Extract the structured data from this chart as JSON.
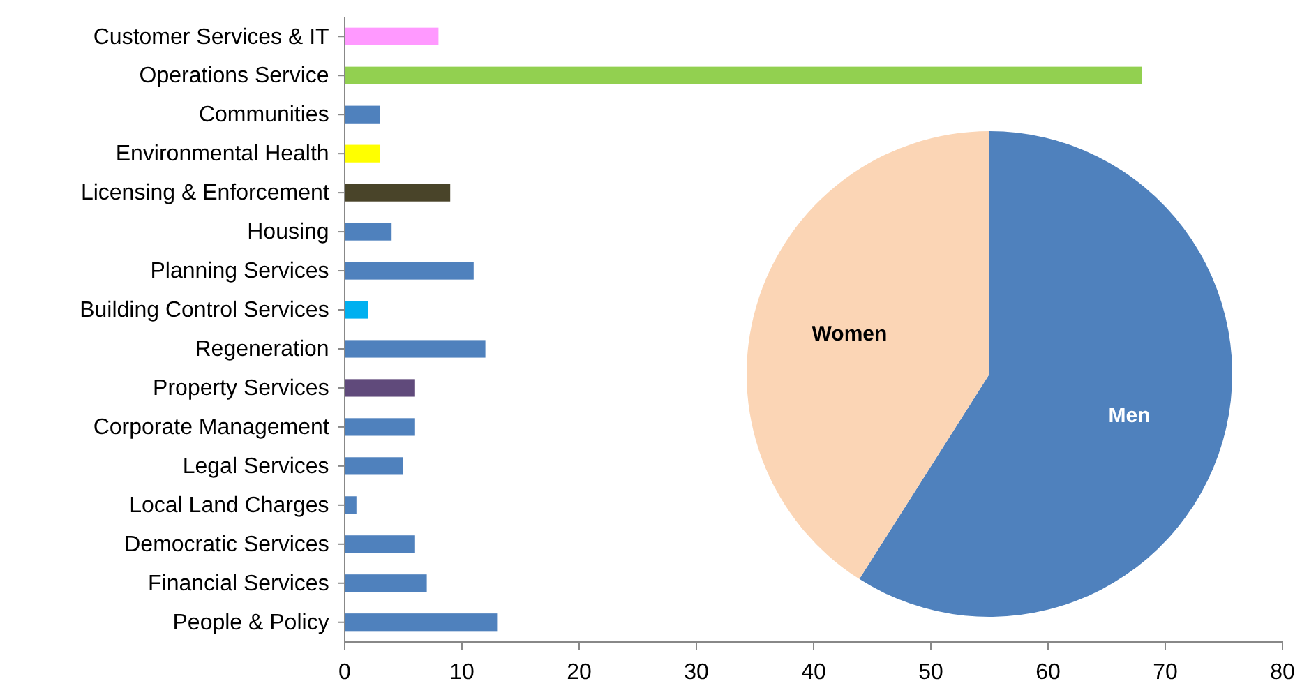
{
  "chart_data": [
    {
      "type": "bar",
      "orientation": "horizontal",
      "categories": [
        "Customer Services & IT",
        "Operations Service",
        "Communities",
        "Environmental Health",
        "Licensing & Enforcement",
        "Housing",
        "Planning Services",
        "Building Control Services",
        "Regeneration",
        "Property Services",
        "Corporate Management",
        "Legal Services",
        "Local Land Charges",
        "Democratic Services",
        "Financial Services",
        "People & Policy"
      ],
      "values": [
        8,
        68,
        3,
        3,
        9,
        4,
        11,
        2,
        12,
        6,
        6,
        5,
        1,
        6,
        7,
        13
      ],
      "colors": [
        "#ff99ff",
        "#92d050",
        "#4f81bd",
        "#ffff00",
        "#494429",
        "#4f81bd",
        "#4f81bd",
        "#00b0f0",
        "#4f81bd",
        "#604a7b",
        "#4f81bd",
        "#4f81bd",
        "#4f81bd",
        "#4f81bd",
        "#4f81bd",
        "#4f81bd"
      ],
      "xlim": [
        0,
        80
      ],
      "xticks": [
        0,
        10,
        20,
        30,
        40,
        50,
        60,
        70,
        80
      ],
      "grid": false
    },
    {
      "type": "pie",
      "categories": [
        "Men",
        "Women"
      ],
      "values": [
        59,
        41
      ],
      "colors": [
        "#4f81bd",
        "#fbd5b5"
      ]
    }
  ]
}
